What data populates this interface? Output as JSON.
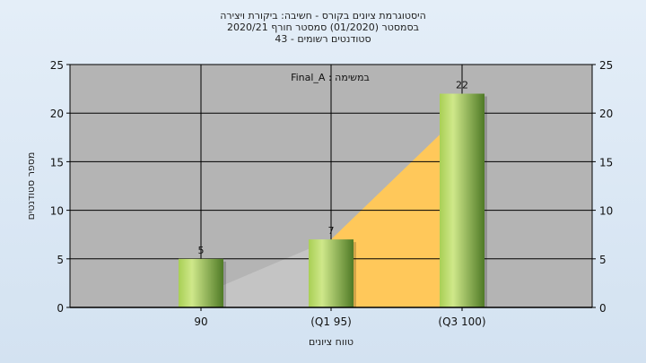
{
  "chart_data": {
    "type": "bar",
    "title_lines": [
      "היסטוגרמת ציונים בקורס - חשיבה: ביקורת ויצירה",
      "בסמסטר  (01/2020)  סמסטר חורף  2020/21",
      "סטודנטים רשומים - 43"
    ],
    "annotation": "במשימה : Final_A",
    "xlabel": "טווח ציונים",
    "ylabel": "מספר סטודנטים",
    "categories": [
      "90",
      "(Q1 95)",
      "(Q3 100)"
    ],
    "values": [
      5,
      7,
      22
    ],
    "data_labels": [
      "5",
      "7",
      "22"
    ],
    "ylim": [
      0,
      25
    ],
    "yticks": [
      0,
      5,
      10,
      15,
      20,
      25
    ],
    "ytick_labels": [
      "0",
      "5",
      "10",
      "15",
      "20",
      "25"
    ],
    "grid": true,
    "colors": {
      "plot_bg": "#b4b4b4",
      "bar_light": "#c8e27e",
      "bar_dark": "#4f7a26",
      "area_yellow": "#ffc85a",
      "area_gray": "#c4c4c4"
    }
  }
}
